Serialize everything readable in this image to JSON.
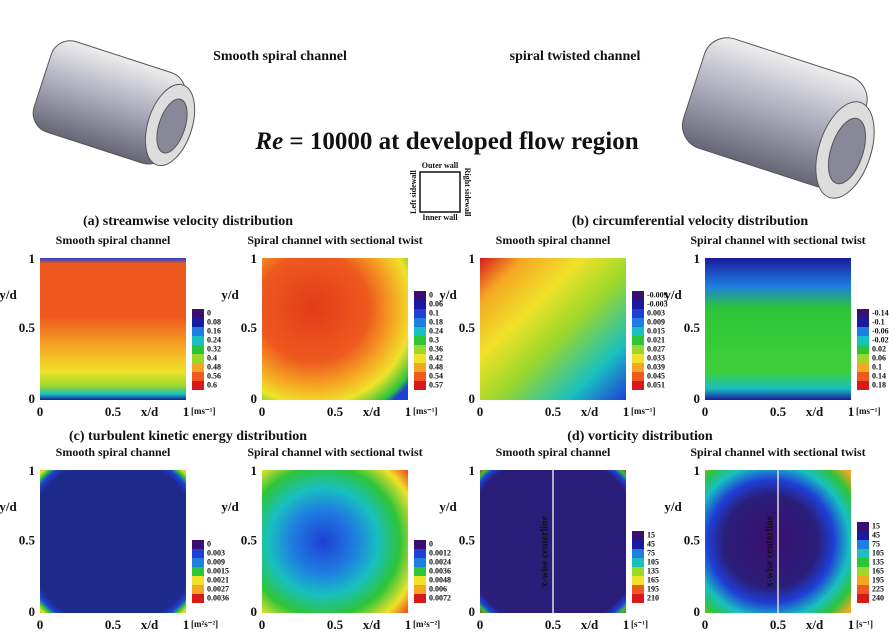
{
  "header": {
    "left_caption": "Smooth spiral channel",
    "right_caption": "spiral twisted channel",
    "title_italic": "Re",
    "title_rest": "= 10000 at developed flow region"
  },
  "schematic": {
    "top": "Outer wall",
    "bottom": "Inner wall",
    "left": "Left sidewall",
    "right": "Right sidewall"
  },
  "axis": {
    "y_label": "y/d",
    "x_label": "x/d",
    "ticks": [
      "0",
      "0.5",
      "1"
    ]
  },
  "sections": [
    {
      "heading": "(a) streamwise velocity distribution",
      "panels": [
        {
          "title": "Smooth spiral channel",
          "unit": "[ms⁻¹]",
          "levels": [
            "0",
            "0.08",
            "0.16",
            "0.24",
            "0.32",
            "0.4",
            "0.48",
            "0.56",
            "0.6"
          ]
        },
        {
          "title": "Spiral channel with sectional twist",
          "unit": "[ms⁻¹]",
          "levels": [
            "0",
            "0.06",
            "0.1",
            "0.18",
            "0.24",
            "0.3",
            "0.36",
            "0.42",
            "0.48",
            "0.54",
            "0.57"
          ]
        }
      ]
    },
    {
      "heading": "(b) circumferential velocity distribution",
      "panels": [
        {
          "title": "Smooth spiral channel",
          "unit": "[ms⁻¹]",
          "levels": [
            "-0.009",
            "-0.003",
            "0.003",
            "0.009",
            "0.015",
            "0.021",
            "0.027",
            "0.033",
            "0.039",
            "0.045",
            "0.051"
          ]
        },
        {
          "title": "Spiral channel with sectional twist",
          "unit": "[ms⁻¹]",
          "levels": [
            "-0.14",
            "-0.1",
            "-0.06",
            "-0.02",
            "0.02",
            "0.06",
            "0.1",
            "0.14",
            "0.18"
          ]
        }
      ]
    },
    {
      "heading": "(c) turbulent kinetic energy distribution",
      "panels": [
        {
          "title": "Smooth spiral channel",
          "unit": "[m²s⁻²]",
          "levels": [
            "0",
            "0.003",
            "0.009",
            "0.0015",
            "0.0021",
            "0.0027",
            "0.0036"
          ]
        },
        {
          "title": "Spiral channel with sectional twist",
          "unit": "[m²s⁻²]",
          "levels": [
            "0",
            "0.0012",
            "0.0024",
            "0.0036",
            "0.0048",
            "0.006",
            "0.0072"
          ]
        }
      ]
    },
    {
      "heading": "(d) vorticity distribution",
      "panels": [
        {
          "title": "Smooth spiral channel",
          "unit": "[s⁻¹]",
          "annotation": "x-wise centerline",
          "levels": [
            "15",
            "45",
            "75",
            "105",
            "135",
            "165",
            "195",
            "210"
          ]
        },
        {
          "title": "Spiral channel with sectional twist",
          "unit": "[s⁻¹]",
          "annotation": "x-wise centerline",
          "levels": [
            "15",
            "45",
            "75",
            "105",
            "135",
            "165",
            "195",
            "225",
            "240"
          ]
        }
      ]
    }
  ]
}
